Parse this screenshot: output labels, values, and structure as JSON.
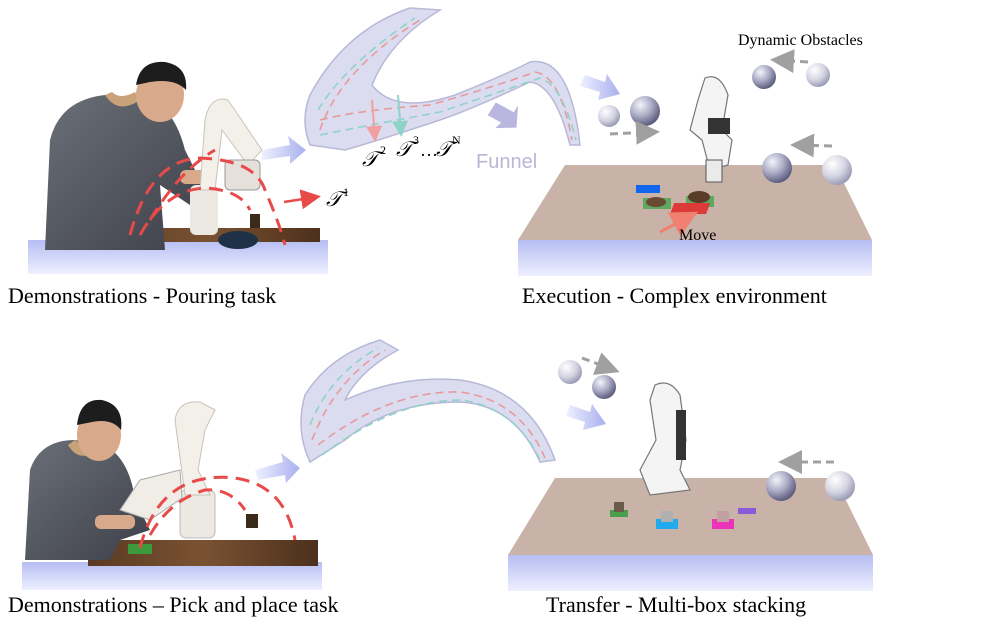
{
  "captions": {
    "top_left": "Demonstrations - Pouring task",
    "top_right": "Execution - Complex environment",
    "bottom_left": "Demonstrations –  Pick and place task",
    "bottom_right": "Transfer - Multi-box stacking"
  },
  "annotations": {
    "tau1": "𝒯",
    "tau1_sup": "1",
    "tau2": "𝒯",
    "tau2_sup": "2",
    "tau3": "𝒯",
    "tau3_sup": "3",
    "tau_dots": "…",
    "tauN": "𝒯",
    "tauN_sup": "N",
    "funnel": "Funnel",
    "dynamic_obstacles": "Dynamic  Obstacles",
    "move": "Move"
  },
  "colors": {
    "funnel_fill": "#dcdcf0",
    "funnel_stroke": "#b8b8d8",
    "red_dash": "#e84a4a",
    "teal_dash": "#8fd3c8",
    "arrow_blue": "#c9cdf2",
    "table_top": "#c9b3a8",
    "table_side": "#c5cbf5",
    "sphere": "#8f8fb0",
    "grey_arrow": "#a0a0a0"
  }
}
